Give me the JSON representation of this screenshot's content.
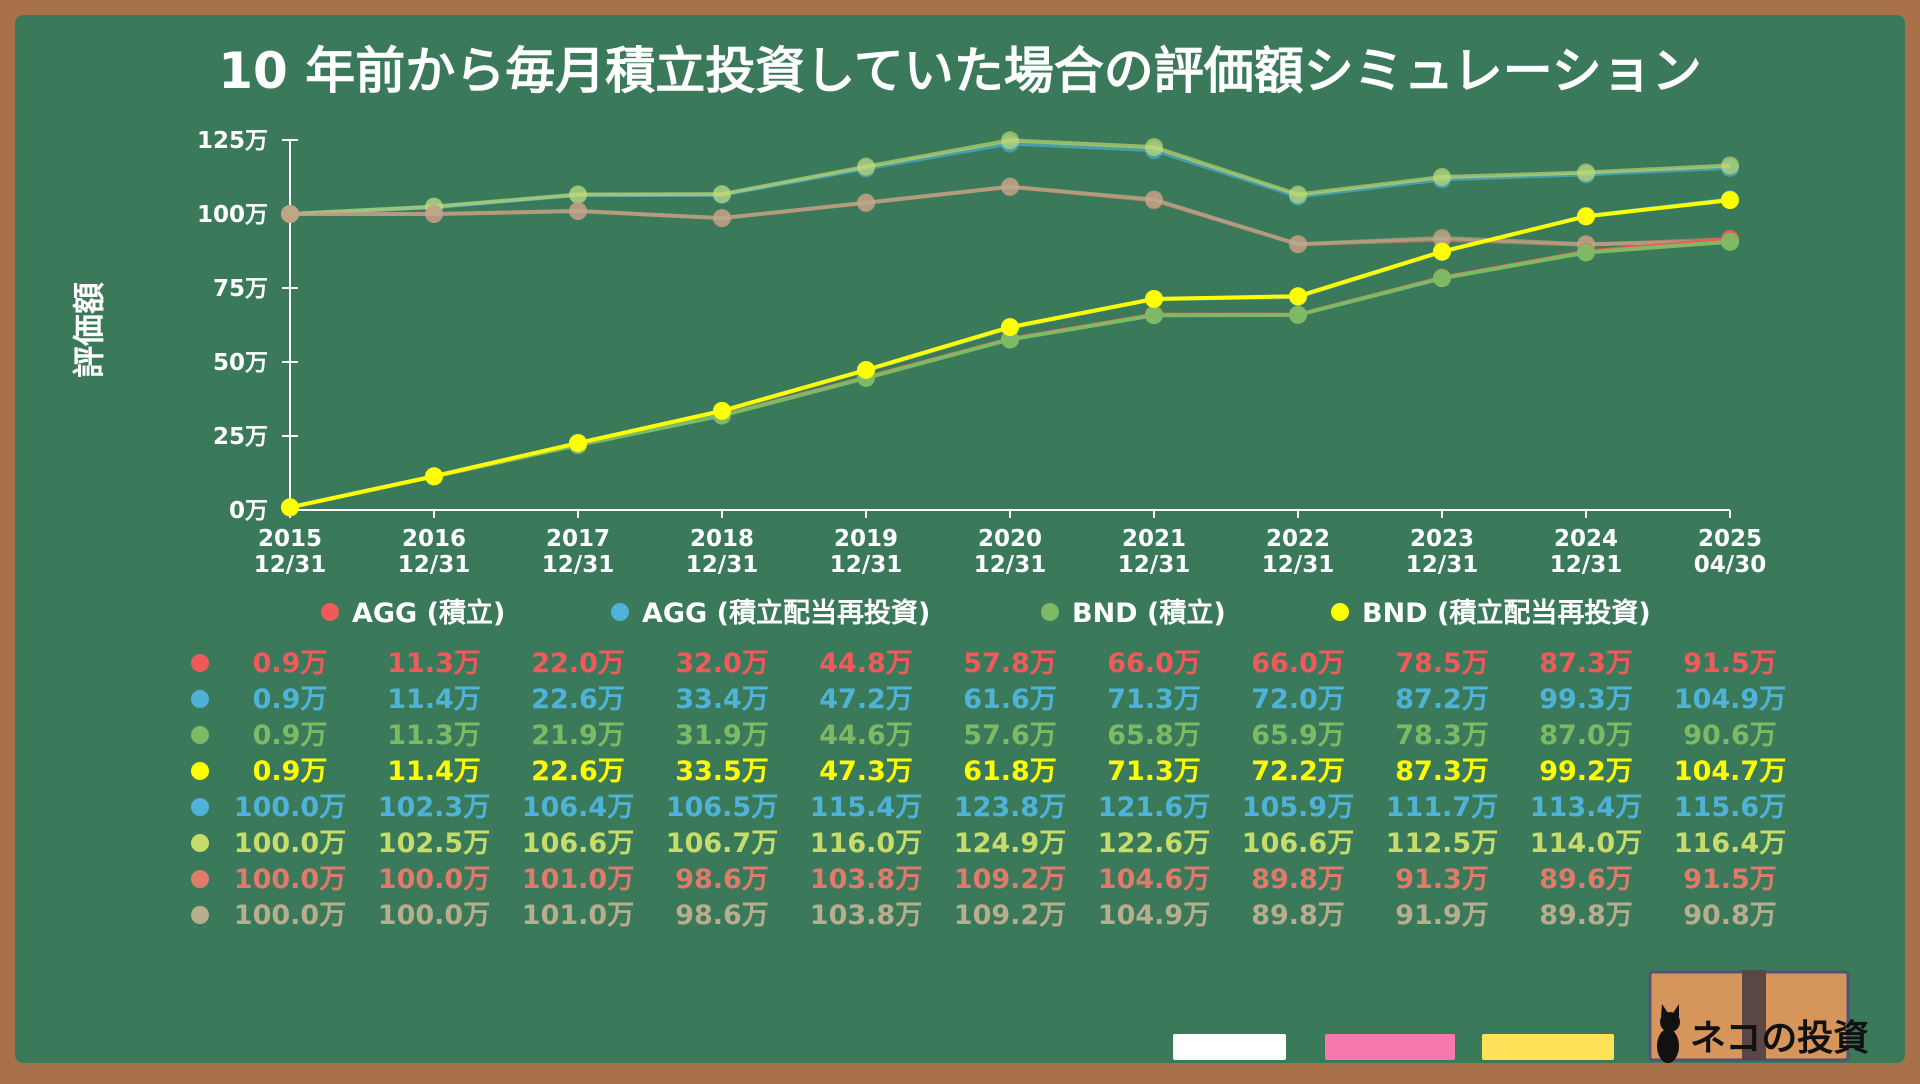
{
  "title": "10 年前から毎月積立投資していた場合の評価額シミュレーション",
  "chart_data": {
    "type": "line",
    "ylabel": "評価額",
    "xlabel": "",
    "unit_suffix": "万",
    "categories": [
      [
        "2015",
        "12/31"
      ],
      [
        "2016",
        "12/31"
      ],
      [
        "2017",
        "12/31"
      ],
      [
        "2018",
        "12/31"
      ],
      [
        "2019",
        "12/31"
      ],
      [
        "2020",
        "12/31"
      ],
      [
        "2021",
        "12/31"
      ],
      [
        "2022",
        "12/31"
      ],
      [
        "2023",
        "12/31"
      ],
      [
        "2024",
        "12/31"
      ],
      [
        "2025",
        "04/30"
      ]
    ],
    "yticks": [
      "0万",
      "25万",
      "50万",
      "75万",
      "100万",
      "125万"
    ],
    "ylim": [
      0,
      125
    ],
    "grid": false,
    "legend_position": "bottom",
    "series": [
      {
        "name": "AGG (積立)",
        "color": "#f05a5a",
        "values": [
          0.9,
          11.3,
          22.0,
          32.0,
          44.8,
          57.8,
          66.0,
          66.0,
          78.5,
          87.3,
          91.5
        ]
      },
      {
        "name": "AGG (積立配当再投資)",
        "color": "#4fb3d9",
        "values": [
          0.9,
          11.4,
          22.6,
          33.4,
          47.2,
          61.6,
          71.3,
          72.0,
          87.2,
          99.3,
          104.9
        ]
      },
      {
        "name": "BND (積立)",
        "color": "#7dba63",
        "values": [
          0.9,
          11.3,
          21.9,
          31.9,
          44.6,
          57.6,
          65.8,
          65.9,
          78.3,
          87.0,
          90.6
        ]
      },
      {
        "name": "BND (積立配当再投資)",
        "color": "#ffff00",
        "values": [
          0.9,
          11.4,
          22.6,
          33.5,
          47.3,
          61.8,
          71.3,
          72.2,
          87.3,
          99.2,
          104.7
        ]
      }
    ],
    "faded_series": [
      {
        "color": "#4fb3d9",
        "values": [
          100.0,
          102.3,
          106.4,
          106.5,
          115.4,
          123.8,
          121.6,
          105.9,
          111.7,
          113.4,
          115.6
        ]
      },
      {
        "color": "#c8dc6a",
        "values": [
          100.0,
          102.5,
          106.6,
          106.7,
          116.0,
          124.9,
          122.6,
          106.6,
          112.5,
          114.0,
          116.4
        ]
      },
      {
        "color": "#e07a6a",
        "values": [
          100.0,
          100.0,
          101.0,
          98.6,
          103.8,
          109.2,
          104.6,
          89.8,
          91.3,
          89.6,
          91.5
        ]
      },
      {
        "color": "#b8ad8e",
        "values": [
          100.0,
          100.0,
          101.0,
          98.6,
          103.8,
          109.2,
          104.9,
          89.8,
          91.9,
          89.8,
          90.8
        ]
      }
    ]
  },
  "chalk_colors": [
    "#ffffff",
    "#f778ad",
    "#ffe15a"
  ],
  "logo": {
    "text": "ネコの投資",
    "icon": "black-cat-icon"
  }
}
